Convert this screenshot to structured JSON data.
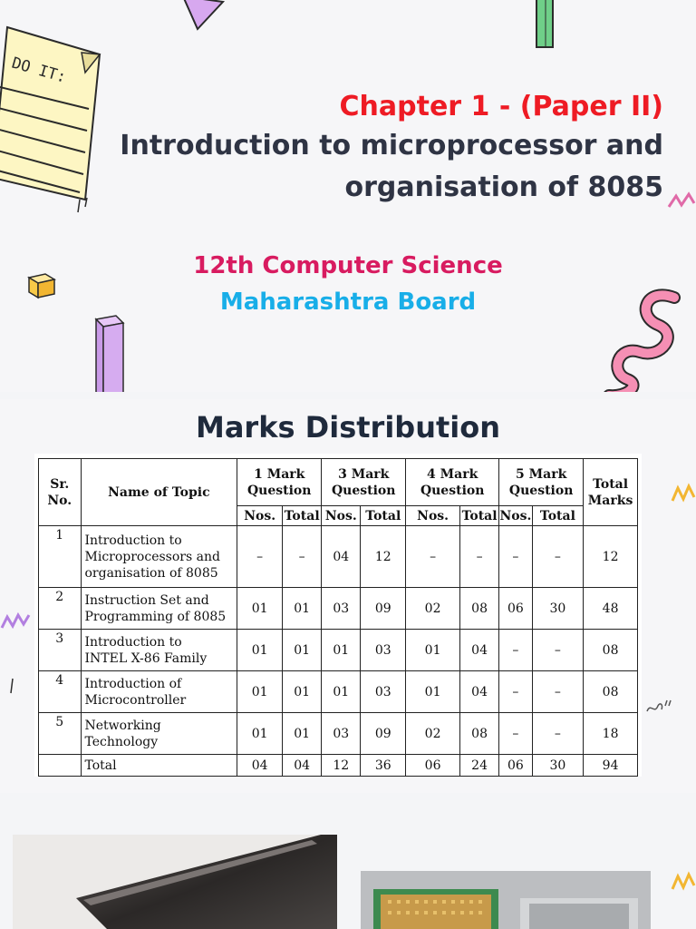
{
  "slide1": {
    "sticky_note_label": "DO IT:",
    "title_line1": "Chapter 1 - (Paper II)",
    "title_line2": "Introduction to microprocessor and",
    "title_line3": "organisation of 8085",
    "subtitle1": "12th Computer Science",
    "subtitle2": "Maharashtra Board",
    "colors": {
      "title_red": "#ee1b24",
      "title_dark": "#2f3444",
      "subtitle_pink": "#d81b60",
      "subtitle_blue": "#18aee8"
    }
  },
  "slide2": {
    "heading": "Marks Distribution",
    "table": {
      "headers": {
        "sr_no": "Sr. No.",
        "topic": "Name of Topic",
        "mark1": "1 Mark Question",
        "mark3": "3 Mark Question",
        "mark4": "4 Mark Question",
        "mark5": "5 Mark Question",
        "total_marks": "Total Marks",
        "nos": "Nos.",
        "total": "Total"
      },
      "rows": [
        {
          "sr": "1",
          "topic_lines": [
            "Introduction to",
            "Microprocessors and",
            "organisation of 8085"
          ],
          "cells": [
            "–",
            "–",
            "04",
            "12",
            "–",
            "–",
            "–",
            "–",
            "12"
          ]
        },
        {
          "sr": "2",
          "topic_lines": [
            "Instruction Set and",
            "Programming of 8085"
          ],
          "cells": [
            "01",
            "01",
            "03",
            "09",
            "02",
            "08",
            "06",
            "30",
            "48"
          ]
        },
        {
          "sr": "3",
          "topic_lines": [
            "Introduction to",
            "INTEL X-86 Family"
          ],
          "cells": [
            "01",
            "01",
            "01",
            "03",
            "01",
            "04",
            "–",
            "–",
            "08"
          ]
        },
        {
          "sr": "4",
          "topic_lines": [
            "Introduction of",
            "Microcontroller"
          ],
          "cells": [
            "01",
            "01",
            "01",
            "03",
            "01",
            "04",
            "–",
            "–",
            "08"
          ]
        },
        {
          "sr": "5",
          "topic_lines": [
            "Networking",
            "Technology"
          ],
          "cells": [
            "01",
            "01",
            "03",
            "09",
            "02",
            "08",
            "–",
            "–",
            "18"
          ]
        }
      ],
      "total_row": {
        "label": "Total",
        "cells": [
          "04",
          "04",
          "12",
          "36",
          "06",
          "24",
          "06",
          "30",
          "94"
        ]
      }
    }
  },
  "slide3": {
    "photo1": "processor chip photo",
    "photo2": "cpu pins photo"
  }
}
